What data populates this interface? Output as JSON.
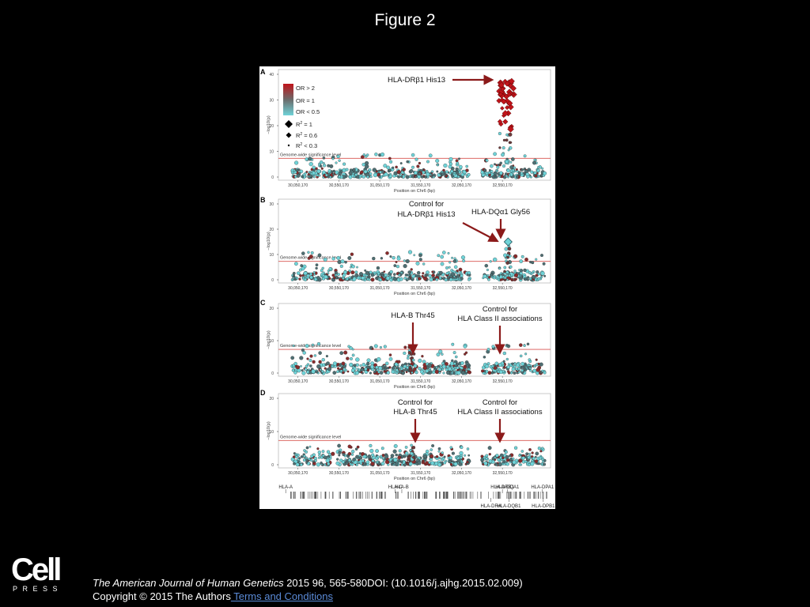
{
  "slide": {
    "title": "Figure 2",
    "citation_journal": "The American Journal of Human Genetics",
    "citation_rest": " 2015 96, 565-580DOI: (10.1016/j.ajhg.2015.02.009)",
    "copyright": "Copyright © 2015 The Authors",
    "terms_link": " Terms and Conditions",
    "logo_word": "Cell",
    "logo_sub": "PRESS"
  },
  "colors": {
    "background": "#000000",
    "figure_bg": "#ffffff",
    "or_high": "#c0141a",
    "or_mid": "#6b6b6b",
    "or_low": "#6fd3d8",
    "significance_line": "#d9534f",
    "arrow": "#8b1a1a",
    "link": "#5b8bd8"
  },
  "chart_data": [
    {
      "panel": "A",
      "type": "scatter",
      "xlabel": "Position on Chr6 (bp)",
      "ylabel": "−log10(p)",
      "x_ticks": [
        "30,050,170",
        "30,550,170",
        "31,050,170",
        "31,550,170",
        "32,050,170",
        "32,550,170"
      ],
      "x_tick_values": [
        30050170,
        30550170,
        31050170,
        31550170,
        32050170,
        32550170
      ],
      "xlim": [
        29850000,
        33100000
      ],
      "ylim": [
        0,
        40
      ],
      "y_ticks": [
        0,
        10,
        20,
        30,
        40
      ],
      "significance_label": "Genome-wide significance level",
      "significance_value": 7.3,
      "legend": {
        "color_title_high": "OR > 2",
        "color_title_mid": "OR = 1",
        "color_title_low": "OR < 0.5",
        "r2_1": "R",
        "r2_1_suffix": " = 1",
        "r2_06": "R",
        "r2_06_suffix": " = 0.6",
        "r2_03": "R",
        "r2_03_suffix": " < 0.3"
      },
      "annotations": [
        {
          "text": "HLA-DRβ1 His13",
          "x": 32660000,
          "y": 38
        }
      ],
      "background_max": 9,
      "peak": {
        "center": 32600000,
        "max": 38
      }
    },
    {
      "panel": "B",
      "type": "scatter",
      "xlabel": "Position on Chr6 (bp)",
      "ylabel": "−log10(p)",
      "x_ticks": [
        "30,050,170",
        "30,550,170",
        "31,050,170",
        "31,550,170",
        "32,050,170",
        "32,550,170"
      ],
      "x_tick_values": [
        30050170,
        30550170,
        31050170,
        31550170,
        32050170,
        32550170
      ],
      "xlim": [
        29850000,
        33100000
      ],
      "ylim": [
        0,
        30
      ],
      "y_ticks": [
        0,
        10,
        20,
        30
      ],
      "significance_label": "Genome-wide significance level",
      "significance_value": 7.3,
      "annotations": [
        {
          "text": "Control for",
          "text2": "HLA-DRβ1 His13",
          "x": 32620000,
          "y": 15
        },
        {
          "text": "HLA-DQα1 Gly56",
          "x": 32620000,
          "y": 15
        }
      ],
      "background_max": 11,
      "peak": {
        "center": 32620000,
        "max": 15
      }
    },
    {
      "panel": "C",
      "type": "scatter",
      "xlabel": "Position on Chr6 (bp)",
      "ylabel": "−log10(p)",
      "x_ticks": [
        "30,050,170",
        "30,550,170",
        "31,050,170",
        "31,550,170",
        "32,050,170",
        "32,550,170"
      ],
      "x_tick_values": [
        30050170,
        30550170,
        31050170,
        31550170,
        32050170,
        32550170
      ],
      "xlim": [
        29850000,
        33100000
      ],
      "ylim": [
        0,
        20
      ],
      "y_ticks": [
        0,
        10,
        20
      ],
      "significance_label": "Genome-wide significance level",
      "significance_value": 7.3,
      "annotations": [
        {
          "text": "HLA-B Thr45",
          "x": 31430000,
          "y": 9
        },
        {
          "text": "Control for",
          "text2": "HLA Class II associations",
          "x": 32620000,
          "y": 6
        }
      ],
      "background_max": 9,
      "peak": {
        "center": 31430000,
        "max": 9
      }
    },
    {
      "panel": "D",
      "type": "scatter",
      "xlabel": "Position on Chr6 (bp)",
      "ylabel": "−log10(p)",
      "x_ticks": [
        "30,050,170",
        "30,550,170",
        "31,050,170",
        "31,550,170",
        "32,050,170",
        "32,550,170"
      ],
      "x_tick_values": [
        30050170,
        30550170,
        31050170,
        31550170,
        32050170,
        32550170
      ],
      "xlim": [
        29850000,
        33100000
      ],
      "ylim": [
        0,
        20
      ],
      "y_ticks": [
        0,
        10,
        20
      ],
      "significance_label": "Genome-wide significance level",
      "significance_value": 7.3,
      "annotations": [
        {
          "text": "Control for",
          "text2": "HLA-B Thr45",
          "x": 31430000,
          "y": 6
        },
        {
          "text": "Control for",
          "text2": "HLA Class II associations",
          "x": 32620000,
          "y": 6
        }
      ],
      "background_max": 6,
      "peak": {
        "center": 31430000,
        "max": 6
      }
    }
  ],
  "gene_track": {
    "top_labels": [
      {
        "name": "HLA-A",
        "x": 29900000
      },
      {
        "name": "HLA-C",
        "x": 31240000
      },
      {
        "name": "HLA-B",
        "x": 31320000
      },
      {
        "name": "HLA-DRB1",
        "x": 32550000
      },
      {
        "name": "HLA-DQA1",
        "x": 32610000
      },
      {
        "name": "HLA-DPA1",
        "x": 33040000
      }
    ],
    "bottom_labels": [
      {
        "name": "HLA-DRA",
        "x": 32410000
      },
      {
        "name": "HLA-DQB1",
        "x": 32630000
      },
      {
        "name": "HLA-DPB1",
        "x": 33050000
      }
    ]
  }
}
